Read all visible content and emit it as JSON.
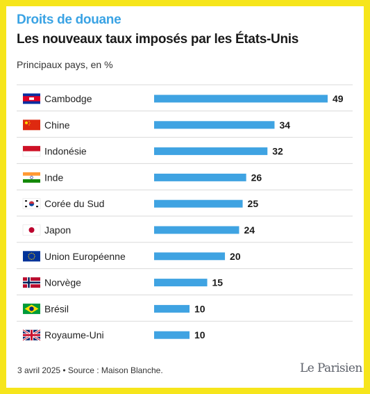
{
  "header": {
    "kicker": "Droits de douane",
    "title": "Les nouveaux taux imposés par les États-Unis",
    "subtitle": "Principaux pays, en %"
  },
  "footer": {
    "source": "3 avril 2025 • Source : Maison Blanche.",
    "logo": "Le Parisien"
  },
  "colors": {
    "frame": "#f6e51b",
    "bar": "#3fa3e2",
    "kicker": "#3aa3e4"
  },
  "chart_data": {
    "type": "bar",
    "orientation": "horizontal",
    "categories": [
      "Cambodge",
      "Chine",
      "Indonésie",
      "Inde",
      "Corée du Sud",
      "Japon",
      "Union Européenne",
      "Norvège",
      "Brésil",
      "Royaume-Uni"
    ],
    "values": [
      49,
      34,
      32,
      26,
      25,
      24,
      20,
      15,
      10,
      10
    ],
    "flags": [
      "flag-cambodia-icon",
      "flag-china-icon",
      "flag-indonesia-icon",
      "flag-india-icon",
      "flag-south-korea-icon",
      "flag-japan-icon",
      "flag-eu-icon",
      "flag-norway-icon",
      "flag-brazil-icon",
      "flag-uk-icon"
    ],
    "title": "",
    "xlabel": "",
    "ylabel": "",
    "xlim": [
      0,
      49
    ],
    "grid": false,
    "legend": "none",
    "data_labels": true
  }
}
